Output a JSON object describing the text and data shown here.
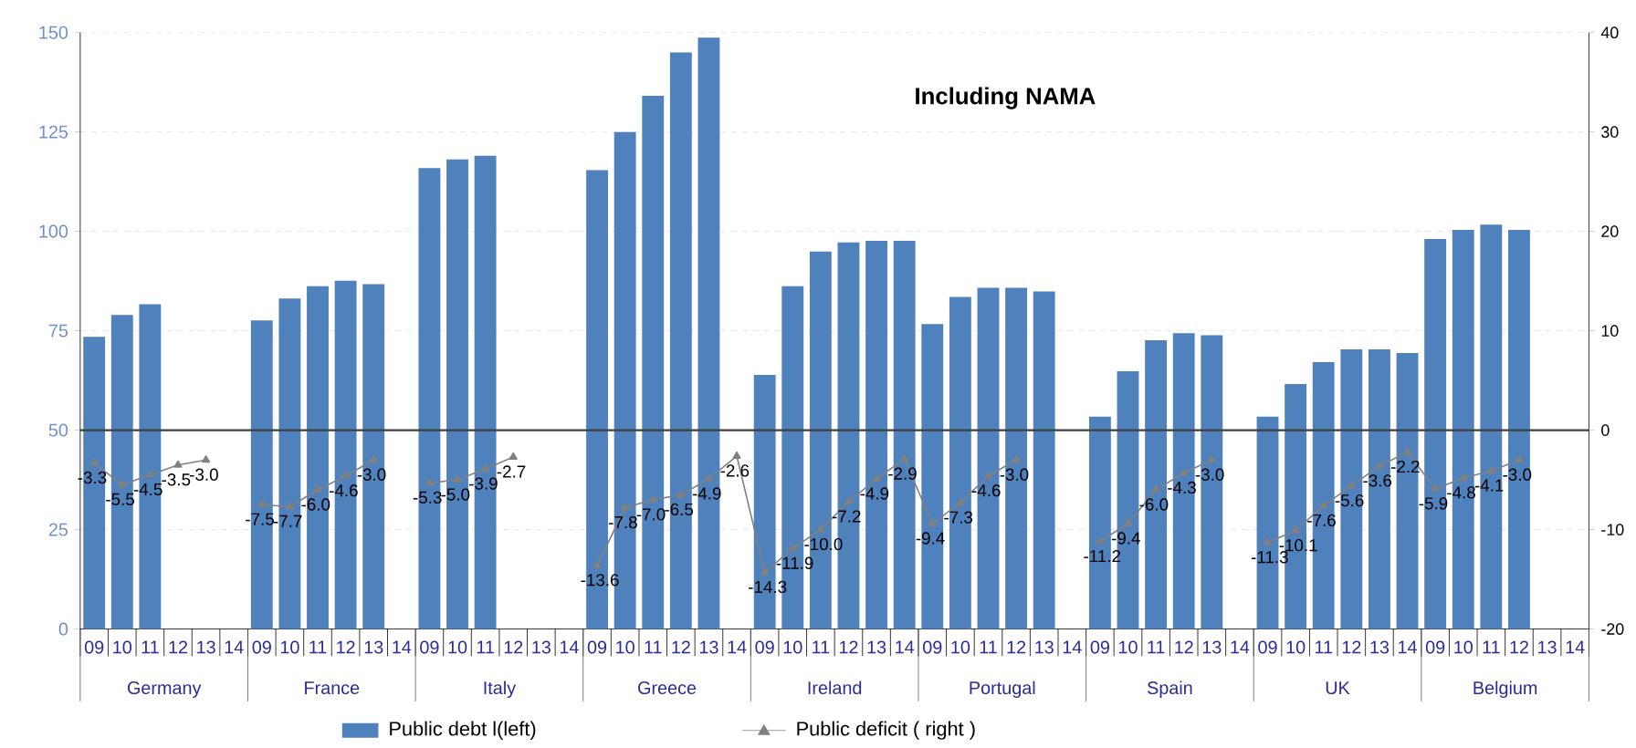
{
  "chart_data": {
    "type": "bar",
    "categories": [
      "09",
      "10",
      "11",
      "12",
      "13",
      "14",
      "09",
      "10",
      "11",
      "12",
      "13",
      "14",
      "09",
      "10",
      "11",
      "12",
      "13",
      "14",
      "09",
      "10",
      "11",
      "12",
      "13",
      "14",
      "09",
      "10",
      "11",
      "12",
      "13",
      "14",
      "09",
      "10",
      "11",
      "12",
      "13",
      "14",
      "09",
      "10",
      "11",
      "12",
      "13",
      "14",
      "09",
      "10",
      "11",
      "12",
      "13",
      "14",
      "09",
      "10",
      "11",
      "12",
      "13",
      "14"
    ],
    "annotations": [
      "Including NAMA",
      "Germany",
      "France",
      "Italy",
      "Greece",
      "Ireland",
      "Portugal",
      "Spain",
      "UK",
      "Belgium"
    ],
    "series": [
      {
        "name": "Public debt l(left)",
        "color": "#4f81bd",
        "values": [
          73.5,
          79.0,
          81.7,
          null,
          null,
          null,
          77.6,
          83.1,
          86.2,
          87.6,
          86.7,
          null,
          115.9,
          118.1,
          119.0,
          null,
          null,
          null,
          115.4,
          125.0,
          134.1,
          145.0,
          148.7,
          null,
          63.9,
          86.2,
          94.9,
          97.2,
          97.6,
          97.6,
          76.7,
          83.5,
          85.8,
          85.8,
          84.9,
          null,
          53.4,
          64.8,
          72.6,
          74.4,
          73.9,
          null,
          53.4,
          61.6,
          67.1,
          70.3,
          70.3,
          69.4,
          98.1,
          100.4,
          101.7,
          100.4,
          null,
          null
        ]
      },
      {
        "name": "Public deficit ( right )",
        "type": "line",
        "axis": "y2",
        "color": "#808080",
        "marker": "triangle",
        "line_style": "solid",
        "value_labels": [
          "-3.3",
          "-5.5",
          "-4.5",
          "-3.5",
          "-3.0",
          null,
          "-7.5",
          "-7.7",
          "-6.0",
          "-4.6",
          "-3.0",
          null,
          "-5.3",
          "-5.0",
          "-3.9",
          "-2.7",
          null,
          null,
          "-13.6",
          "-7.8",
          "-7.0",
          "-6.5",
          "-4.9",
          "-2.6",
          "-14.3",
          "-11.9",
          "-10.0",
          "-7.2",
          "-4.9",
          "-2.9",
          "-9.4",
          "-7.3",
          "-4.6",
          "-3.0",
          null,
          null,
          "-11.2",
          "-9.4",
          "-6.0",
          "-4.3",
          "-3.0",
          null,
          "-11.3",
          "-10.1",
          "-7.6",
          "-5.6",
          "-3.6",
          "-2.2",
          "-5.9",
          "-4.8",
          "-4.1",
          "-3.0",
          null,
          null
        ],
        "values": [
          -3.3,
          -5.5,
          -4.5,
          -3.5,
          -3.0,
          null,
          -7.5,
          -7.7,
          -6.0,
          -4.6,
          -3.0,
          null,
          -5.3,
          -5.0,
          -3.9,
          -2.7,
          null,
          null,
          -13.6,
          -7.8,
          -7.0,
          -6.5,
          -4.9,
          -2.6,
          -14.3,
          -11.9,
          -10.0,
          -7.2,
          -4.9,
          -2.9,
          -9.4,
          -7.3,
          -4.6,
          -3.0,
          null,
          null,
          -11.2,
          -9.4,
          -6.0,
          -4.3,
          -3.0,
          null,
          -11.3,
          -10.1,
          -7.6,
          -5.6,
          -3.6,
          -2.2,
          -5.9,
          -4.8,
          -4.1,
          -3.0,
          null,
          null
        ]
      }
    ],
    "ylim": [
      0,
      150
    ],
    "yticks": [
      0,
      25,
      50,
      75,
      100,
      125,
      150
    ],
    "y2lim": [
      -20,
      40
    ],
    "y2ticks": [
      -20,
      -10,
      0,
      10,
      20,
      30,
      40
    ],
    "grid": "y",
    "legend": "bottom",
    "ref_lines": [
      {
        "axis": "y2",
        "value": 0,
        "color": "#404040"
      }
    ]
  }
}
